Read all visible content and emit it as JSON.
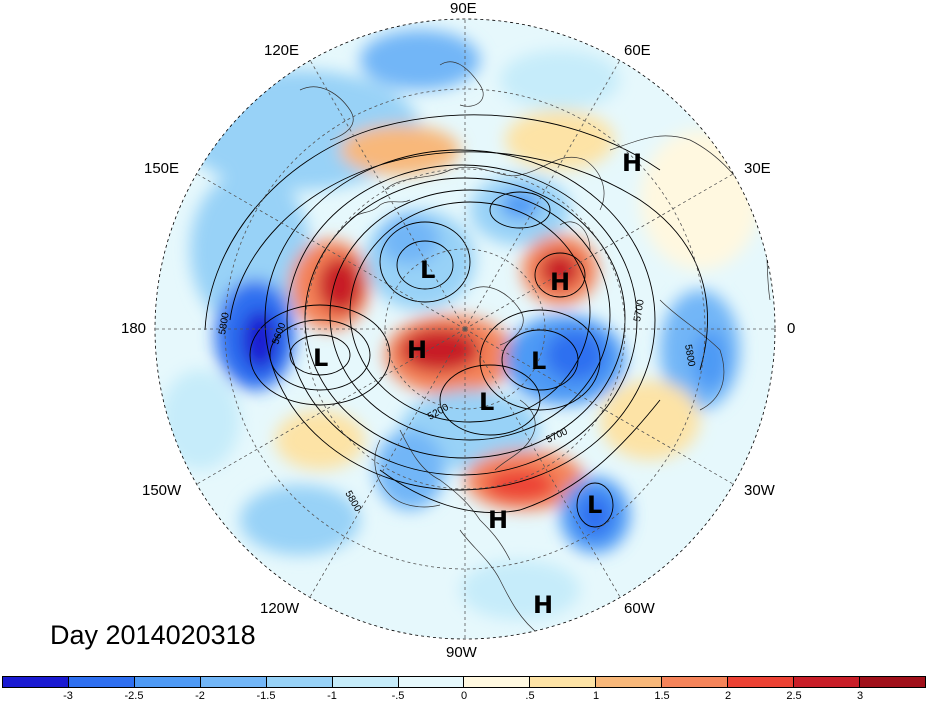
{
  "map": {
    "timestamp_label": "Day 2014020318",
    "longitude_labels": [
      "90E",
      "60E",
      "30E",
      "0",
      "30W",
      "60W",
      "90W",
      "120W",
      "150W",
      "180",
      "150E",
      "120E"
    ],
    "pressure_centers": [
      {
        "symbol": "H"
      },
      {
        "symbol": "L"
      },
      {
        "symbol": "H"
      },
      {
        "symbol": "L"
      },
      {
        "symbol": "H"
      },
      {
        "symbol": "L"
      },
      {
        "symbol": "L"
      },
      {
        "symbol": "H"
      },
      {
        "symbol": "L"
      },
      {
        "symbol": "H"
      }
    ],
    "contour_labels": [
      "5800",
      "5600",
      "5700",
      "5800",
      "5700",
      "5800",
      "5200"
    ]
  },
  "colorbar": {
    "tick_labels": [
      "-3",
      "-2.5",
      "-2",
      "-1.5",
      "-1",
      "-.5",
      "0",
      ".5",
      "1",
      "1.5",
      "2",
      "2.5",
      "3"
    ],
    "colors": [
      "#1a1ad2",
      "#2e6ff0",
      "#4e9af5",
      "#72b6f7",
      "#98d2f7",
      "#c6ecfa",
      "#e6f8fc",
      "#fff8e0",
      "#fde3a6",
      "#f8b87a",
      "#f5845a",
      "#ec4234",
      "#c81e28",
      "#a0101a"
    ]
  }
}
